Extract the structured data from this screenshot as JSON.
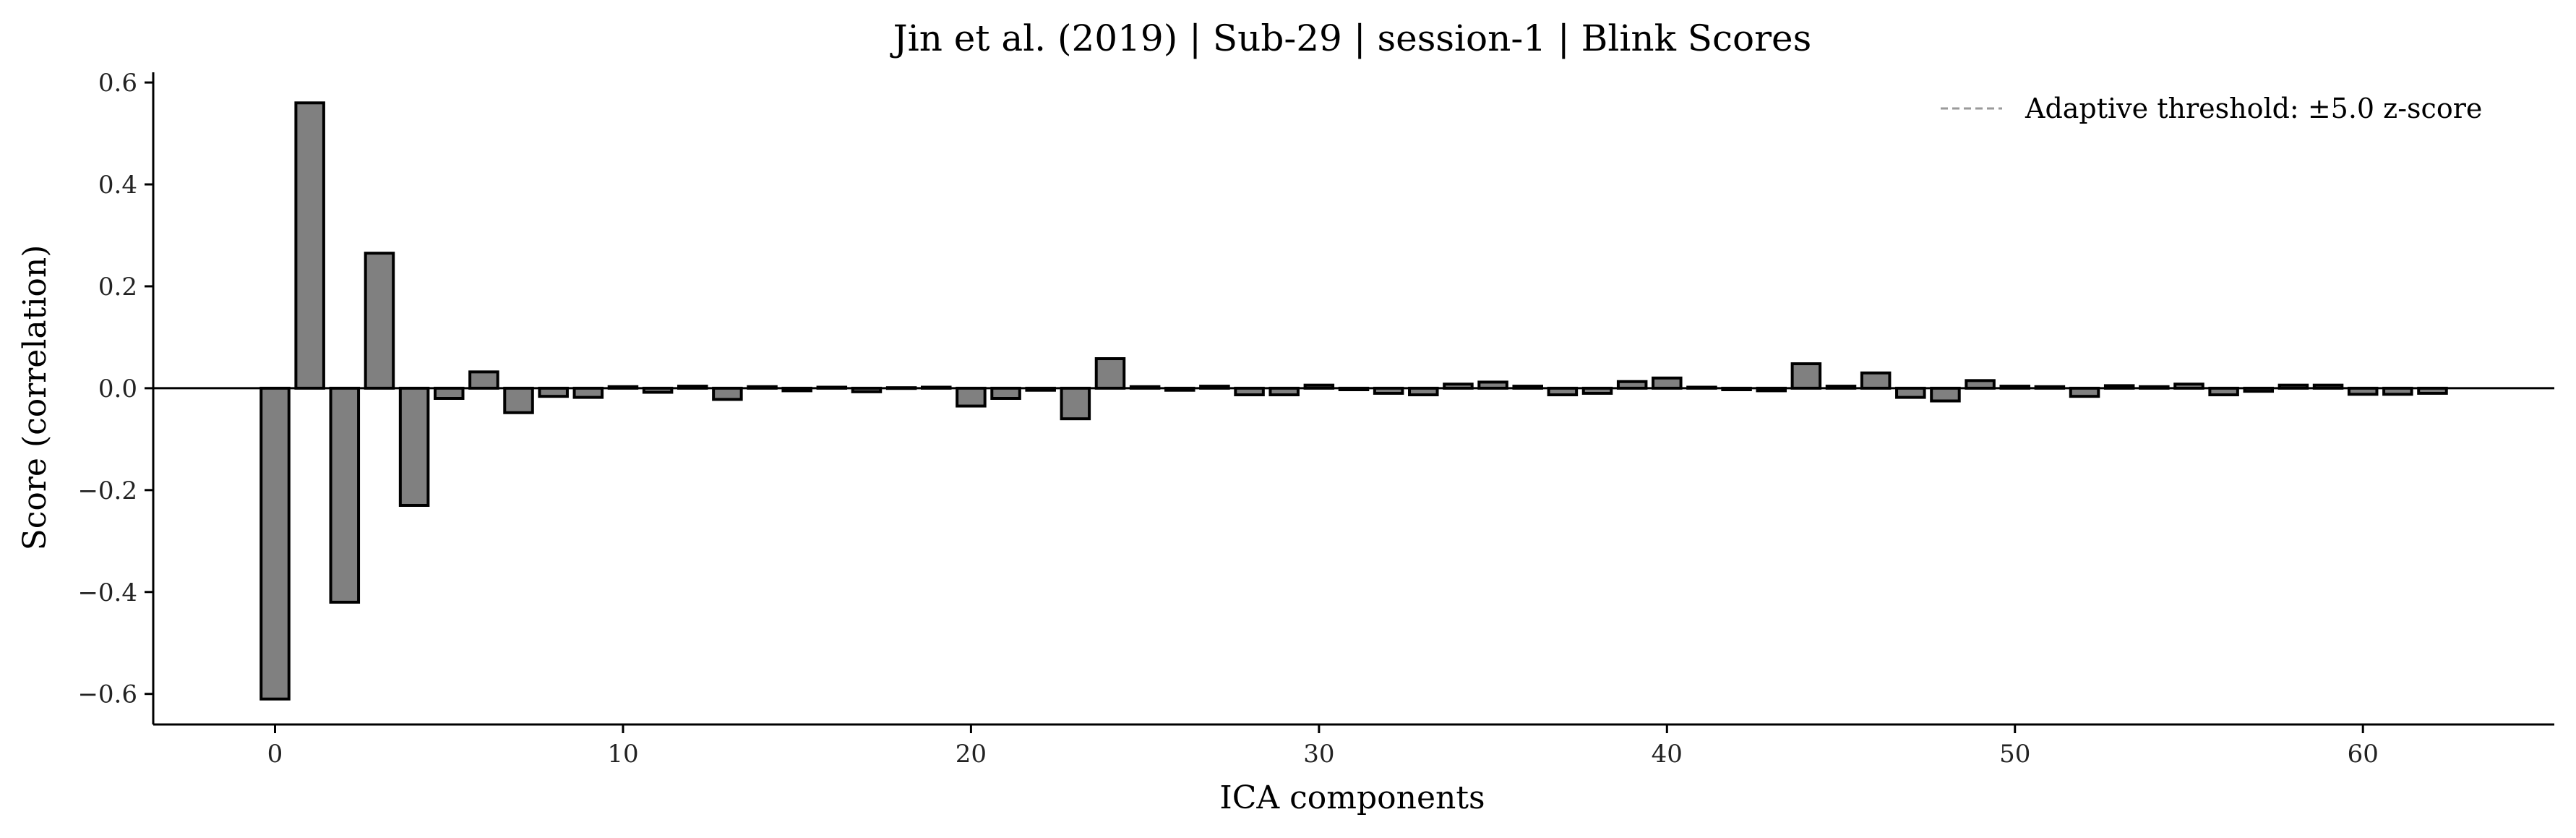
{
  "chart_data": {
    "type": "bar",
    "title": "Jin et al. (2019) | Sub-29 | session-1 | Blink Scores",
    "xlabel": "ICA components",
    "ylabel": "Score (correlation)",
    "xlim": [
      -3.5,
      65.5
    ],
    "ylim": [
      -0.66,
      0.62
    ],
    "xticks": [
      0,
      10,
      20,
      30,
      40,
      50,
      60
    ],
    "xtick_labels": [
      "0",
      "10",
      "20",
      "30",
      "40",
      "50",
      "60"
    ],
    "yticks": [
      -0.6,
      -0.4,
      -0.2,
      0.0,
      0.2,
      0.4,
      0.6
    ],
    "ytick_labels": [
      "−0.6",
      "−0.4",
      "−0.2",
      "0.0",
      "0.2",
      "0.4",
      "0.6"
    ],
    "legend": {
      "placement": "top-right",
      "entries": [
        {
          "label": "Adaptive threshold: ±5.0 z-score",
          "style": "dashed",
          "color": "#9a9a9a"
        }
      ]
    },
    "bar_color": "#808080",
    "edge_color": "#000000",
    "x": [
      0,
      1,
      2,
      3,
      4,
      5,
      6,
      7,
      8,
      9,
      10,
      11,
      12,
      13,
      14,
      15,
      16,
      17,
      18,
      19,
      20,
      21,
      22,
      23,
      24,
      25,
      26,
      27,
      28,
      29,
      30,
      31,
      32,
      33,
      34,
      35,
      36,
      37,
      38,
      39,
      40,
      41,
      42,
      43,
      44,
      45,
      46,
      47,
      48,
      49,
      50,
      51,
      52,
      53,
      54,
      55,
      56,
      57,
      58,
      59,
      60,
      61,
      62
    ],
    "values": [
      -0.61,
      0.56,
      -0.42,
      0.265,
      -0.23,
      -0.02,
      0.032,
      -0.048,
      -0.016,
      -0.018,
      0.003,
      -0.008,
      0.004,
      -0.022,
      0.003,
      -0.005,
      0.002,
      -0.007,
      0.001,
      0.002,
      -0.035,
      -0.02,
      -0.004,
      -0.06,
      0.058,
      0.003,
      -0.004,
      0.004,
      -0.013,
      -0.013,
      0.006,
      -0.003,
      -0.01,
      -0.013,
      0.008,
      0.012,
      0.004,
      -0.013,
      -0.01,
      0.013,
      0.02,
      0.002,
      -0.003,
      -0.005,
      0.048,
      0.004,
      0.03,
      -0.018,
      -0.025,
      0.015,
      0.004,
      0.003,
      -0.016,
      0.005,
      0.003,
      0.008,
      -0.013,
      -0.006,
      0.006,
      0.006,
      -0.012,
      -0.012,
      -0.01
    ]
  }
}
